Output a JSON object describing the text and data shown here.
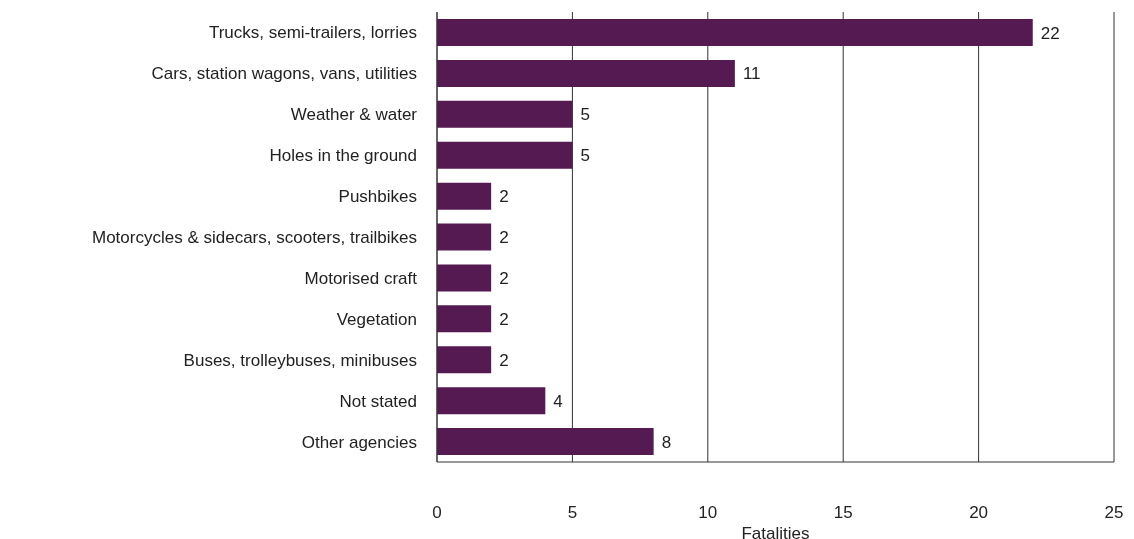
{
  "chart_data": {
    "type": "bar",
    "orientation": "horizontal",
    "xlabel": "Fatalities",
    "categories": [
      "Trucks, semi-trailers, lorries",
      "Cars, station wagons, vans, utilities",
      "Weather & water",
      "Holes in the ground",
      "Pushbikes",
      "Motorcycles & sidecars, scooters, trailbikes",
      "Motorised craft",
      "Vegetation",
      "Buses, trolleybuses, minibuses",
      "Not stated",
      "Other agencies"
    ],
    "values": [
      22,
      11,
      5,
      5,
      2,
      2,
      2,
      2,
      2,
      4,
      8
    ],
    "color": "#561a52",
    "xlim": [
      0,
      25
    ],
    "xticks": [
      0,
      5,
      10,
      15,
      20,
      25
    ],
    "grid": "x",
    "data_labels": true,
    "legend": false
  }
}
